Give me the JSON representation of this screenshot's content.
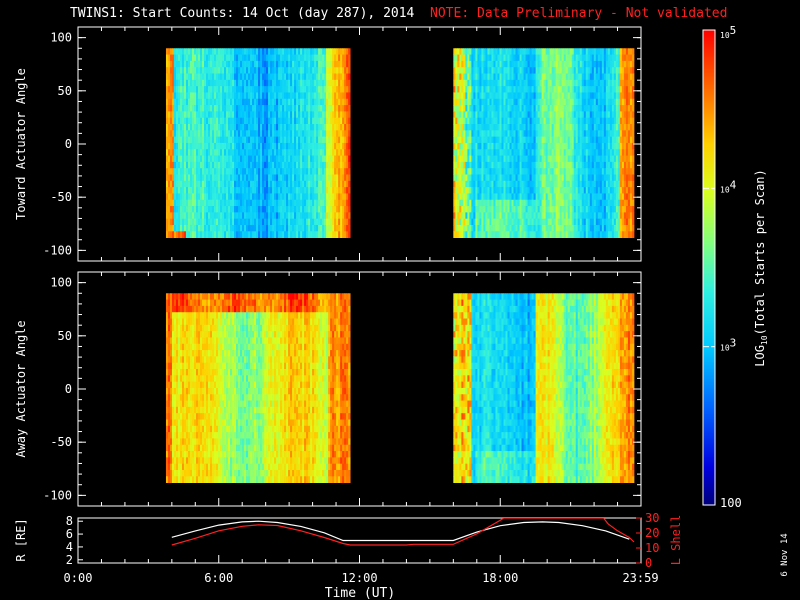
{
  "title": {
    "main": "TWINS1: Start Counts: 14 Oct (day 287), 2014",
    "note": "NOTE: Data Preliminary - Not validated"
  },
  "colors": {
    "background": "#000000",
    "axes": "#ffffff",
    "note": "#ff2020",
    "lshell": "#ff2020",
    "radius": "#ffffff"
  },
  "side_label": "6 Nov 14",
  "chart_data": [
    {
      "type": "heatmap",
      "ylabel": "Toward Actuator Angle",
      "ylim": [
        -110,
        110
      ],
      "yticks": [
        -100,
        -50,
        0,
        50,
        100
      ],
      "x_unit": "hours UT",
      "data_intervals": [
        [
          3.75,
          11.6
        ],
        [
          16.0,
          23.7
        ]
      ],
      "angle_range": [
        -88,
        90
      ],
      "description_levels": {
        "interval1": "log counts mostly 3.0–3.4 (cyan/blue), rising to ~4.6 near 10.8–11.4 h edge and at start",
        "interval2": "log counts mostly 2.9–3.3 (blue/cyan), edges 4.3–4.7"
      }
    },
    {
      "type": "heatmap",
      "ylabel": "Away Actuator Angle",
      "ylim": [
        -110,
        110
      ],
      "yticks": [
        -100,
        -50,
        0,
        50,
        100
      ],
      "x_unit": "hours UT",
      "data_intervals": [
        [
          3.75,
          11.6
        ],
        [
          16.0,
          23.7
        ]
      ],
      "angle_range": [
        -88,
        90
      ],
      "description_levels": {
        "interval1": "log counts 3.8–4.4 (yellow/orange), high band near +75 to +90",
        "interval2": "log counts 2.9–3.4 near 16.5–19.5 h, 3.6–4.3 after"
      }
    },
    {
      "type": "line",
      "ylabel_left": "R [RE]",
      "ylabel_right": "L Shell",
      "xlabel": "Time (UT)",
      "xlim": [
        0,
        24
      ],
      "xticks": [
        "0:00",
        "6:00",
        "12:00",
        "18:00",
        "23:59"
      ],
      "xtick_values": [
        0,
        6,
        12,
        18,
        23.98
      ],
      "ylim_left": [
        1.5,
        8.5
      ],
      "yticks_left": [
        2,
        4,
        6,
        8
      ],
      "ylim_right": [
        0,
        30
      ],
      "yticks_right": [
        0,
        10,
        20,
        30
      ],
      "series": [
        {
          "axis": "left",
          "x": [
            4.0,
            5.0,
            6.0,
            7.0,
            7.7,
            8.5,
            9.5,
            10.5,
            11.3,
            12.0,
            13.0,
            14.0,
            15.0,
            16.0,
            17.0,
            18.0,
            19.0,
            19.8,
            20.5,
            21.5,
            22.5,
            23.5
          ],
          "y": [
            5.5,
            6.5,
            7.4,
            7.9,
            8.0,
            7.8,
            7.2,
            6.2,
            5.0,
            5.0,
            5.0,
            5.0,
            5.0,
            5.0,
            6.3,
            7.3,
            7.8,
            7.9,
            7.8,
            7.3,
            6.5,
            5.2
          ]
        },
        {
          "axis": "right",
          "x": [
            4.0,
            5.0,
            6.0,
            7.0,
            7.7,
            8.5,
            9.5,
            10.5,
            11.3,
            11.6,
            14.0,
            14.3,
            16.0,
            17.0,
            18.0,
            18.15,
            22.4,
            22.6,
            23.0,
            23.5,
            23.7
          ],
          "y": [
            12.0,
            16.5,
            21.5,
            24.5,
            25.5,
            25.0,
            21.5,
            17.0,
            13.0,
            12.0,
            12.0,
            12.5,
            12.5,
            19.5,
            28.5,
            30.0,
            30.0,
            26.0,
            21.5,
            17.0,
            14.0
          ]
        }
      ]
    }
  ],
  "colorbar": {
    "label_pre": "LOG",
    "label_sub": "10",
    "label_post": "(Total Starts per Scan)",
    "ticks": [
      {
        "base": "10",
        "exp": "5",
        "value": 5
      },
      {
        "base": "10",
        "exp": "4",
        "value": 4
      },
      {
        "base": "10",
        "exp": "3",
        "value": 3
      },
      {
        "base": "100",
        "exp": "",
        "value": 2
      }
    ],
    "range": [
      2,
      5
    ]
  }
}
